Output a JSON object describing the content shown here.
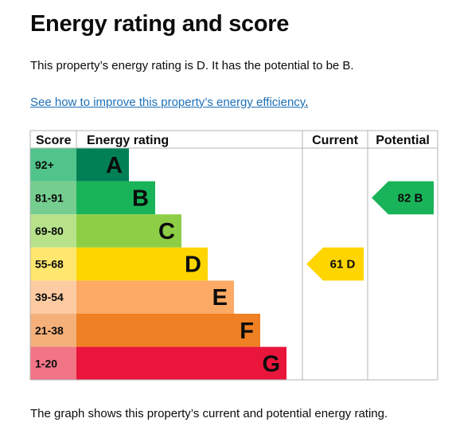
{
  "page": {
    "title": "Energy rating and score",
    "intro": "This property’s energy rating is D. It has the potential to be B.",
    "improve_link": "See how to improve this property’s energy efficiency",
    "improve_link_suffix": ".",
    "caption": "The graph shows this property’s current and potential energy rating."
  },
  "chart_data": {
    "type": "table",
    "columns": [
      "Score",
      "Energy rating",
      "Current",
      "Potential"
    ],
    "bands": [
      {
        "score": "92+",
        "letter": "A",
        "color": "#008054",
        "score_color": "#50c48a"
      },
      {
        "score": "81-91",
        "letter": "B",
        "color": "#19b459",
        "score_color": "#75cd8f"
      },
      {
        "score": "69-80",
        "letter": "C",
        "color": "#8dce46",
        "score_color": "#b7e28a"
      },
      {
        "score": "55-68",
        "letter": "D",
        "color": "#ffd500",
        "score_color": "#ffe66f"
      },
      {
        "score": "39-54",
        "letter": "E",
        "color": "#fcaa65",
        "score_color": "#fdcba2"
      },
      {
        "score": "21-38",
        "letter": "F",
        "color": "#ef8023",
        "score_color": "#f5b07a"
      },
      {
        "score": "1-20",
        "letter": "G",
        "color": "#e9153b",
        "score_color": "#f27487"
      }
    ],
    "current": {
      "score": 61,
      "letter": "D",
      "label": "61 D",
      "color": "#ffd500"
    },
    "potential": {
      "score": 82,
      "letter": "B",
      "label": "82 B",
      "color": "#19b459"
    },
    "grid_color": "#b1b4b6"
  }
}
